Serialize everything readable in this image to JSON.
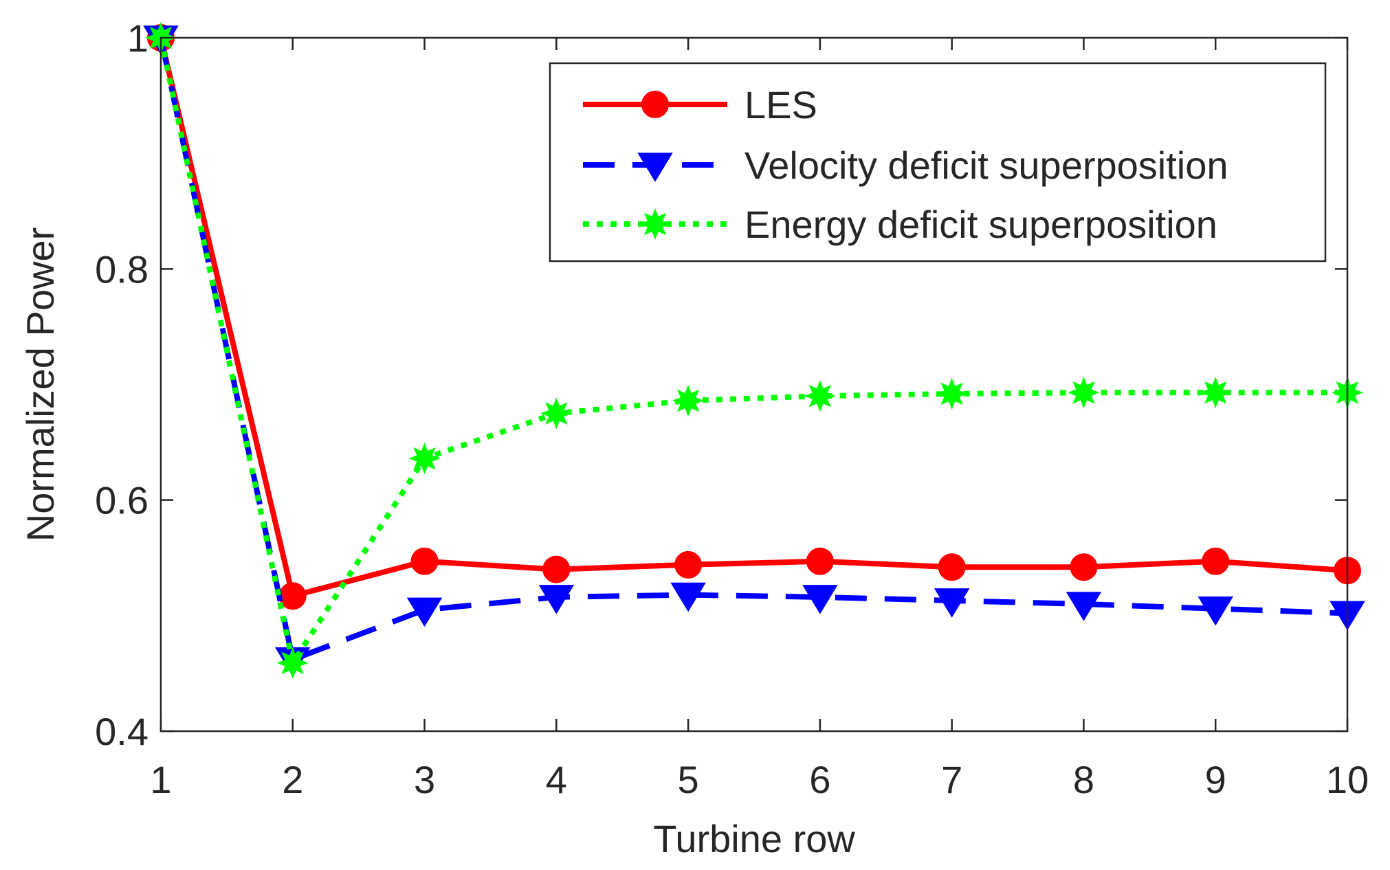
{
  "chart_data": {
    "type": "line",
    "title": "",
    "xlabel": "Turbine row",
    "ylabel": "Normalized Power",
    "x": [
      1,
      2,
      3,
      4,
      5,
      6,
      7,
      8,
      9,
      10
    ],
    "xticks": [
      1,
      2,
      3,
      4,
      5,
      6,
      7,
      8,
      9,
      10
    ],
    "xlim": [
      1,
      10
    ],
    "yticks": [
      0.4,
      0.6,
      0.8,
      1
    ],
    "ytick_labels": [
      "0.4",
      "0.6",
      "0.8",
      "1"
    ],
    "ylim": [
      0.4,
      1.0
    ],
    "grid": false,
    "legend_position": "top-right",
    "series": [
      {
        "name": "LES",
        "color": "#ff0000",
        "line_style": "solid",
        "marker": "circle",
        "values": [
          1.0,
          0.517,
          0.547,
          0.54,
          0.544,
          0.547,
          0.542,
          0.542,
          0.547,
          0.539
        ]
      },
      {
        "name": "Velocity deficit superposition",
        "color": "#0000ff",
        "line_style": "dashed",
        "marker": "triangle-down",
        "values": [
          1.0,
          0.462,
          0.505,
          0.516,
          0.518,
          0.516,
          0.513,
          0.51,
          0.506,
          0.502
        ]
      },
      {
        "name": "Energy deficit superposition",
        "color": "#00ff00",
        "line_style": "dotted",
        "marker": "star",
        "values": [
          1.0,
          0.459,
          0.636,
          0.675,
          0.686,
          0.69,
          0.692,
          0.693,
          0.693,
          0.693
        ]
      }
    ]
  }
}
